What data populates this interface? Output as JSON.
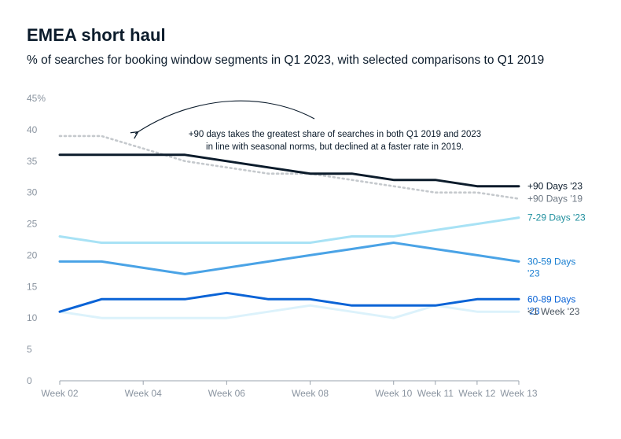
{
  "header": {
    "title": "EMEA short haul",
    "subtitle": "% of searches for booking window segments in Q1 2023, with selected comparisons to Q1 2019"
  },
  "chart_data": {
    "type": "line",
    "title": "EMEA short haul",
    "subtitle": "% of searches for booking window segments in Q1 2023, with selected comparisons to Q1 2019",
    "xlabel": "",
    "ylabel": "",
    "ylim": [
      0,
      45
    ],
    "y_ticks": [
      "0",
      "5",
      "10",
      "15",
      "20",
      "25",
      "30",
      "35",
      "40",
      "45%"
    ],
    "x_ticks": [
      "Week 02",
      "Week 04",
      "Week 06",
      "Week 08",
      "Week 10",
      "Week 11",
      "Week 12",
      "Week 13"
    ],
    "x": [
      2,
      3,
      4,
      5,
      6,
      7,
      8,
      9,
      10,
      11,
      12,
      13
    ],
    "grid": false,
    "series": [
      {
        "name": "+90 Days '23",
        "label_lines": [
          "+90 Days '23"
        ],
        "color": "#0b1b2b",
        "dashed": false,
        "values": [
          36,
          36,
          36,
          36,
          35,
          34,
          33,
          33,
          32,
          32,
          31,
          31
        ]
      },
      {
        "name": "+90 Days '19",
        "label_lines": [
          "+90 Days '19"
        ],
        "color": "#c5c9cd",
        "dashed": true,
        "values": [
          39,
          39,
          37,
          35,
          34,
          33,
          33,
          32,
          31,
          30,
          30,
          29
        ]
      },
      {
        "name": "7-29 Days '23",
        "label_lines": [
          "7-29 Days '23"
        ],
        "color": "#a8e2f5",
        "dashed": false,
        "values": [
          23,
          22,
          22,
          22,
          22,
          22,
          22,
          23,
          23,
          24,
          25,
          26
        ]
      },
      {
        "name": "30-59 Days '23",
        "label_lines": [
          "30-59 Days",
          "'23"
        ],
        "color": "#4aa3e6",
        "dashed": false,
        "values": [
          19,
          19,
          18,
          17,
          18,
          19,
          20,
          21,
          22,
          21,
          20,
          19
        ]
      },
      {
        "name": "60-89 Days '23",
        "label_lines": [
          "60-89 Days",
          "'23"
        ],
        "color": "#0a63d6",
        "dashed": false,
        "values": [
          11,
          13,
          13,
          13,
          14,
          13,
          13,
          12,
          12,
          12,
          13,
          13
        ]
      },
      {
        "name": "<1 Week '23",
        "label_lines": [
          "<1 Week '23"
        ],
        "color": "#dcf2fb",
        "dashed": false,
        "values": [
          11,
          10,
          10,
          10,
          10,
          11,
          12,
          11,
          10,
          12,
          11,
          11
        ]
      }
    ],
    "label_colors": [
      "#0b1b2b",
      "#6b7682",
      "#1f8f9e",
      "#1a7fd1",
      "#0a63d6",
      "#4a5560"
    ],
    "annotation": {
      "lines": [
        "+90 days takes the greatest share of searches in both Q1 2019 and 2023",
        "in line with seasonal norms, but declined at a faster rate in 2019."
      ]
    }
  }
}
